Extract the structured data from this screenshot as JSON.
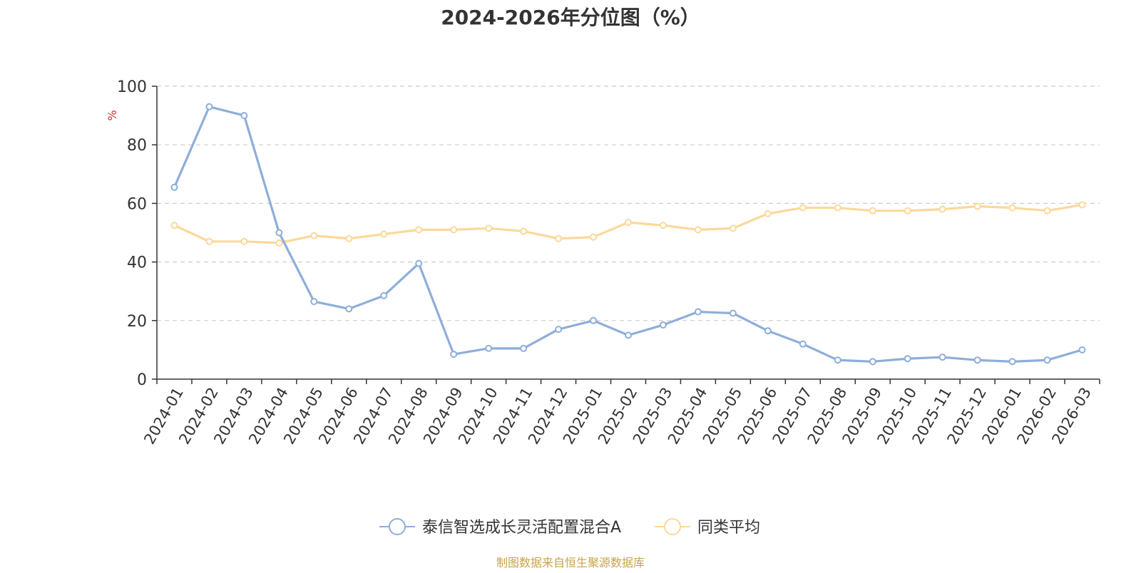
{
  "chart_data": {
    "type": "line",
    "title": "2024-2026年分位图（%）",
    "ylabel": "%",
    "ylim": [
      0,
      100
    ],
    "yticks": [
      0,
      20,
      40,
      60,
      80,
      100
    ],
    "grid": true,
    "legend_position": "bottom",
    "categories": [
      "2024-01",
      "2024-02",
      "2024-03",
      "2024-04",
      "2024-05",
      "2024-06",
      "2024-07",
      "2024-08",
      "2024-09",
      "2024-10",
      "2024-11",
      "2024-12",
      "2025-01",
      "2025-02",
      "2025-03",
      "2025-04",
      "2025-05",
      "2025-06",
      "2025-07",
      "2025-08",
      "2025-09",
      "2025-10",
      "2025-11",
      "2025-12",
      "2026-01",
      "2026-02",
      "2026-03"
    ],
    "series": [
      {
        "name": "泰信智选成长灵活配置混合A",
        "color": "#8eaed9",
        "values": [
          65.5,
          93,
          90,
          50,
          26.5,
          24,
          28.5,
          39.5,
          8.5,
          10.5,
          10.5,
          17,
          20,
          15,
          18.5,
          23,
          22.5,
          16.5,
          12,
          6.5,
          6,
          7,
          7.5,
          6.5,
          6,
          6.5,
          10
        ]
      },
      {
        "name": "同类平均",
        "color": "#fbd89a",
        "values": [
          52.5,
          47,
          47,
          46.5,
          49,
          48,
          49.5,
          51,
          51,
          51.5,
          50.5,
          48,
          48.5,
          53.5,
          52.5,
          51,
          51.5,
          56.5,
          58.5,
          58.5,
          57.5,
          57.5,
          58,
          59,
          58.5,
          57.5,
          59.5
        ]
      }
    ],
    "source": "制图数据来自恒生聚源数据库"
  }
}
